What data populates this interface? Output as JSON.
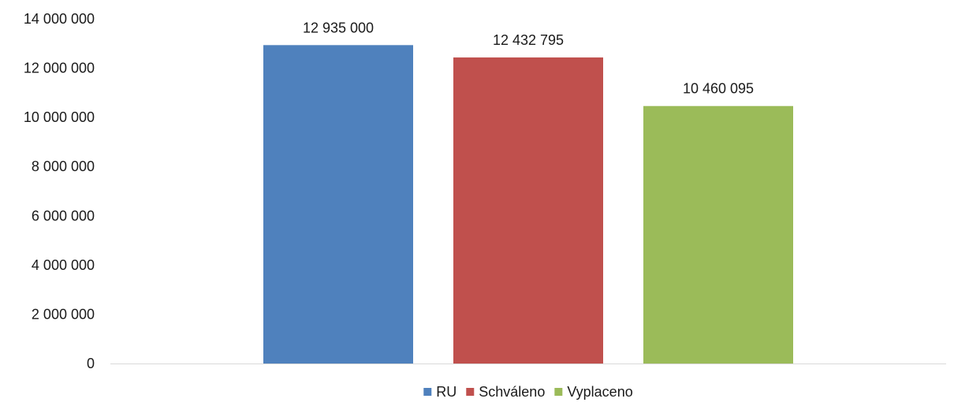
{
  "chart_data": {
    "type": "bar",
    "categories": [
      ""
    ],
    "series": [
      {
        "name": "RU",
        "values": [
          12935000
        ],
        "color": "#4f81bd",
        "label": "12 935 000"
      },
      {
        "name": "Schváleno",
        "values": [
          12432795
        ],
        "color": "#c0504d",
        "label": "12 432 795"
      },
      {
        "name": "Vyplaceno",
        "values": [
          10460095
        ],
        "color": "#9bbb59",
        "label": "10 460 095"
      }
    ],
    "ylim": [
      0,
      14000000
    ],
    "yticks": [
      {
        "value": 0,
        "label": "0"
      },
      {
        "value": 2000000,
        "label": "2 000 000"
      },
      {
        "value": 4000000,
        "label": "4 000 000"
      },
      {
        "value": 6000000,
        "label": "6 000 000"
      },
      {
        "value": 8000000,
        "label": "8 000 000"
      },
      {
        "value": 10000000,
        "label": "10 000 000"
      },
      {
        "value": 12000000,
        "label": "12 000 000"
      },
      {
        "value": 14000000,
        "label": "14 000 000"
      }
    ],
    "grid": false,
    "legend": "bottom",
    "title": "",
    "xlabel": "",
    "ylabel": ""
  }
}
